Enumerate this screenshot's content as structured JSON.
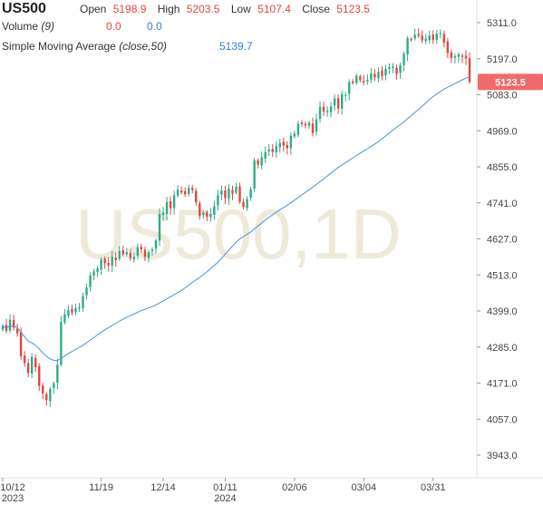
{
  "header": {
    "symbol": "US500",
    "open_label": "Open",
    "open_value": "5198.9",
    "high_label": "High",
    "high_value": "5203.5",
    "low_label": "Low",
    "low_value": "5107.4",
    "close_label": "Close",
    "close_value": "5123.5",
    "volume_label": "Volume",
    "volume_param": "(9)",
    "volume_val1": "0.0",
    "volume_val2": "0.0",
    "sma_label": "Simple Moving Average",
    "sma_param": "(close,50)",
    "sma_value": "5139.7"
  },
  "watermark": "US500,1D",
  "price_tag": "5123.5",
  "colors": {
    "up": "#2eab8a",
    "down": "#e0463e",
    "sma": "#4a90e2",
    "tag": "#f06a6a",
    "watermark": "#efe9da"
  },
  "chart_data": {
    "type": "candlestick",
    "y_ticks": [
      "5311.0",
      "5197.0",
      "5083.0",
      "4969.0",
      "4855.0",
      "4741.0",
      "4627.0",
      "4513.0",
      "4399.0",
      "4285.0",
      "4171.0",
      "4057.0",
      "3943.0"
    ],
    "ylim": [
      3900,
      5340
    ],
    "x_ticks": [
      {
        "label": "10/12",
        "sub": "2023",
        "index": 0
      },
      {
        "label": "11/19",
        "sub": "",
        "index": 27
      },
      {
        "label": "12/14",
        "sub": "",
        "index": 44
      },
      {
        "label": "01/11",
        "sub": "2024",
        "index": 61
      },
      {
        "label": "02/06",
        "sub": "",
        "index": 80
      },
      {
        "label": "03/04",
        "sub": "",
        "index": 99
      },
      {
        "label": "03/31",
        "sub": "",
        "index": 118
      }
    ],
    "sma_period": 50,
    "sma_last": 5139.7,
    "closes": [
      4352,
      4336,
      4371,
      4346,
      4328,
      4256,
      4234,
      4203,
      4254,
      4221,
      4162,
      4137,
      4117,
      4152,
      4170,
      4229,
      4365,
      4388,
      4402,
      4394,
      4408,
      4411,
      4445,
      4473,
      4511,
      4524,
      4534,
      4562,
      4550,
      4543,
      4571,
      4560,
      4589,
      4578,
      4585,
      4566,
      4571,
      4601,
      4594,
      4570,
      4585,
      4594,
      4622,
      4705,
      4710,
      4743,
      4724,
      4765,
      4783,
      4774,
      4768,
      4788,
      4781,
      4743,
      4700,
      4710,
      4697,
      4706,
      4730,
      4765,
      4780,
      4756,
      4786,
      4770,
      4792,
      4745,
      4728,
      4753,
      4784,
      4876,
      4862,
      4885,
      4901,
      4910,
      4902,
      4920,
      4930,
      4922,
      4914,
      4953,
      4960,
      4992,
      4990,
      4986,
      4995,
      4962,
      5005,
      5045,
      5030,
      5032,
      5046,
      5071,
      5040,
      5085,
      5082,
      5123,
      5120,
      5143,
      5130,
      5122,
      5130,
      5150,
      5138,
      5156,
      5142,
      5165,
      5170,
      5172,
      5149,
      5176,
      5212,
      5262,
      5257,
      5273,
      5270,
      5255,
      5260,
      5270,
      5256,
      5276,
      5278,
      5248,
      5215,
      5200,
      5205,
      5211,
      5203,
      5198,
      5123.5
    ],
    "bars": 129
  }
}
